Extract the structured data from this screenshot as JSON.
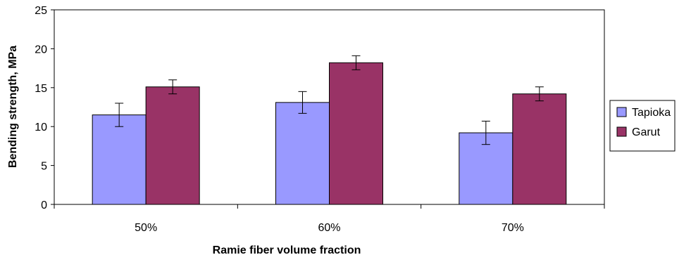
{
  "chart_data": {
    "type": "bar",
    "categories": [
      "50%",
      "60%",
      "70%"
    ],
    "series": [
      {
        "name": "Tapioka",
        "color": "#9999ff",
        "values": [
          11.5,
          13.1,
          9.2
        ],
        "error": [
          1.5,
          1.4,
          1.5
        ]
      },
      {
        "name": "Garut",
        "color": "#993366",
        "values": [
          15.1,
          18.2,
          14.2
        ],
        "error": [
          0.9,
          0.9,
          0.9
        ]
      }
    ],
    "title": "",
    "xlabel": "Ramie fiber volume fraction",
    "ylabel": "Bending strength, MPa",
    "ylim": [
      0,
      25
    ],
    "yticks": [
      0,
      5,
      10,
      15,
      20,
      25
    ],
    "grid": false,
    "legend": "right"
  }
}
